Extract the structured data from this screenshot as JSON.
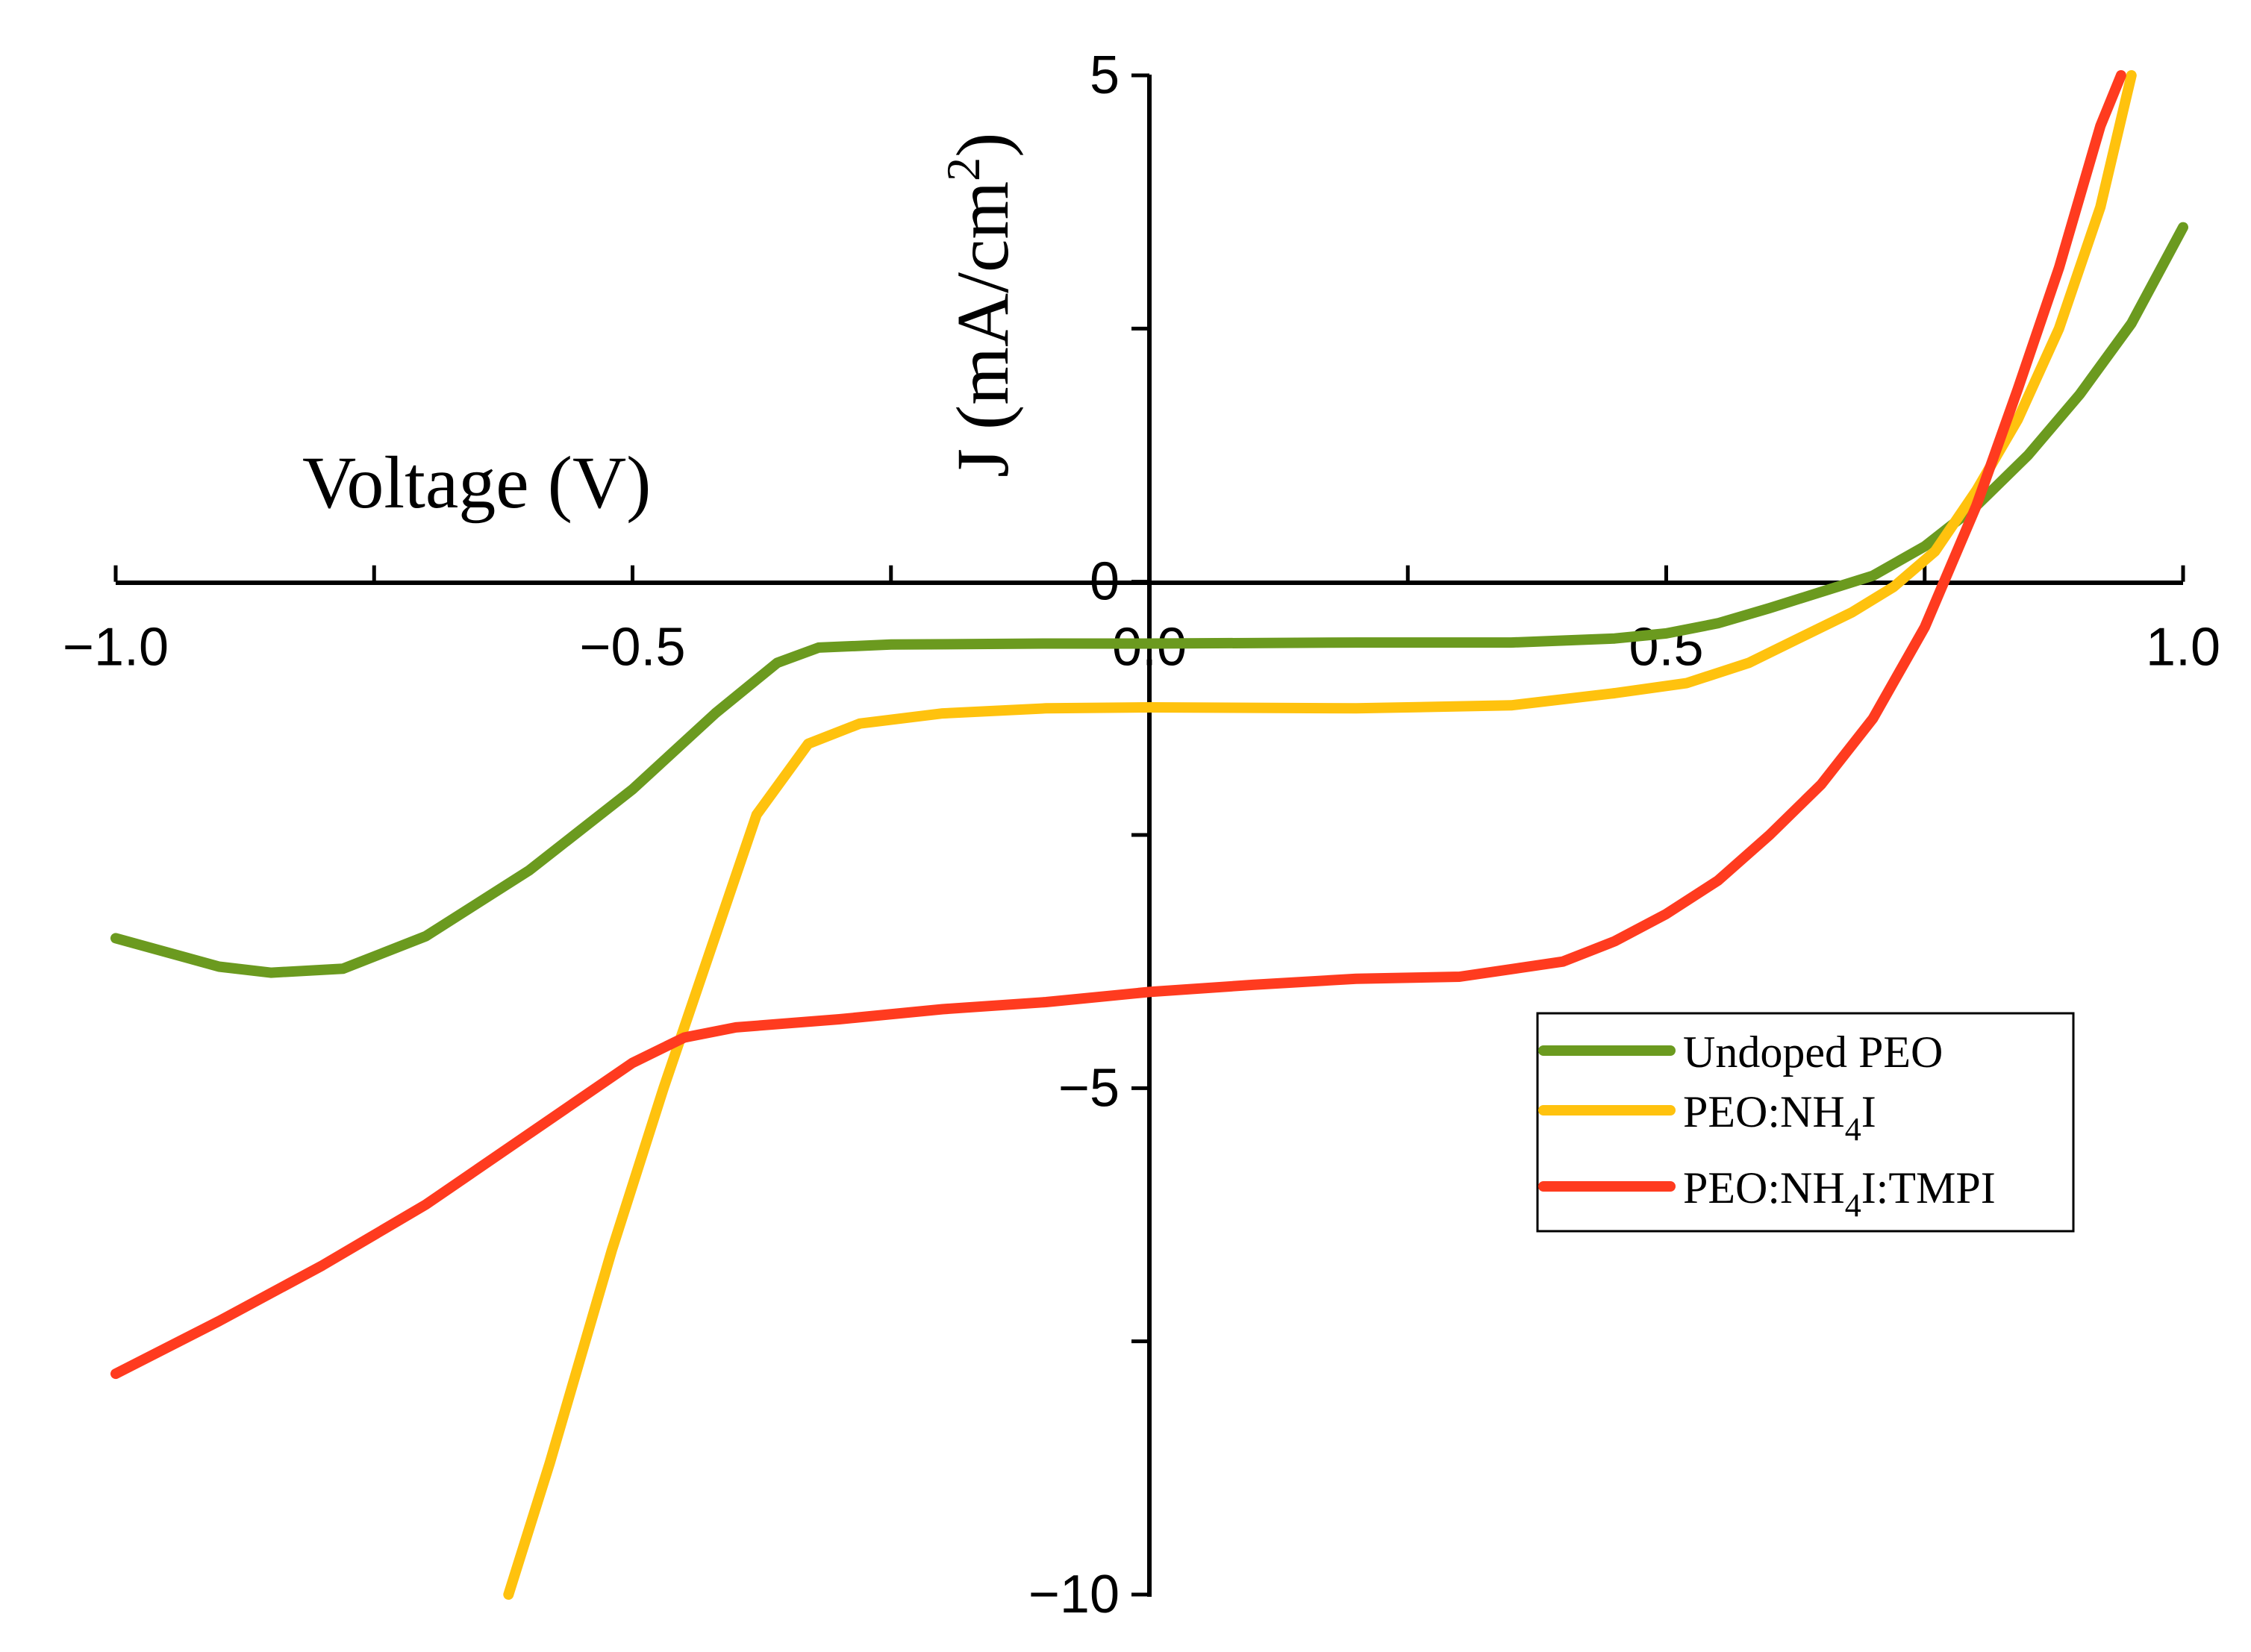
{
  "chart_data": {
    "type": "line",
    "xlabel": "Voltage (V)",
    "ylabel_main": "J (mA/cm",
    "ylabel_sup": "2",
    "ylabel_close": ")",
    "xlim": [
      -1.0,
      1.0
    ],
    "ylim": [
      -10,
      5
    ],
    "xticks": [
      -1.0,
      -0.75,
      -0.5,
      -0.25,
      0.0,
      0.25,
      0.5,
      0.75,
      1.0
    ],
    "xtick_labels": [
      {
        "value": -1.0,
        "label": "−1.0"
      },
      {
        "value": -0.5,
        "label": "−0.5"
      },
      {
        "value": 0.0,
        "label": "0.0"
      },
      {
        "value": 0.5,
        "label": "0.5"
      },
      {
        "value": 1.0,
        "label": "1.0"
      }
    ],
    "yticks": [
      -10,
      -7.5,
      -5,
      -2.5,
      0,
      2.5,
      5
    ],
    "ytick_labels": [
      {
        "value": 5,
        "label": "5"
      },
      {
        "value": 0,
        "label": "0"
      },
      {
        "value": -5,
        "label": "−5"
      },
      {
        "value": -10,
        "label": "−10"
      }
    ],
    "legend_position": "center-right",
    "series": [
      {
        "name": "Undoped PEO",
        "legend_main": "Undoped PEO",
        "legend_sub": "",
        "legend_rest": "",
        "color": "#6b9a1f",
        "points": [
          [
            -1.0,
            -3.52
          ],
          [
            -0.9,
            -3.8
          ],
          [
            -0.85,
            -3.86
          ],
          [
            -0.78,
            -3.82
          ],
          [
            -0.7,
            -3.5
          ],
          [
            -0.6,
            -2.85
          ],
          [
            -0.5,
            -2.05
          ],
          [
            -0.42,
            -1.3
          ],
          [
            -0.36,
            -0.8
          ],
          [
            -0.32,
            -0.65
          ],
          [
            -0.25,
            -0.62
          ],
          [
            -0.1,
            -0.61
          ],
          [
            0.0,
            -0.61
          ],
          [
            0.2,
            -0.6
          ],
          [
            0.35,
            -0.6
          ],
          [
            0.45,
            -0.56
          ],
          [
            0.5,
            -0.51
          ],
          [
            0.55,
            -0.41
          ],
          [
            0.6,
            -0.26
          ],
          [
            0.65,
            -0.1
          ],
          [
            0.7,
            0.06
          ],
          [
            0.75,
            0.35
          ],
          [
            0.8,
            0.75
          ],
          [
            0.85,
            1.25
          ],
          [
            0.9,
            1.85
          ],
          [
            0.95,
            2.55
          ],
          [
            1.0,
            3.5
          ]
        ]
      },
      {
        "name": "PEO:NH4I",
        "legend_main": "PEO:NH",
        "legend_sub": "4",
        "legend_rest": "I",
        "color": "#ffc20e",
        "points": [
          [
            -0.62,
            -10.0
          ],
          [
            -0.58,
            -8.7
          ],
          [
            -0.52,
            -6.6
          ],
          [
            -0.47,
            -5.0
          ],
          [
            -0.42,
            -3.5
          ],
          [
            -0.38,
            -2.3
          ],
          [
            -0.33,
            -1.6
          ],
          [
            -0.28,
            -1.4
          ],
          [
            -0.2,
            -1.3
          ],
          [
            -0.1,
            -1.25
          ],
          [
            0.0,
            -1.24
          ],
          [
            0.2,
            -1.25
          ],
          [
            0.35,
            -1.22
          ],
          [
            0.45,
            -1.1
          ],
          [
            0.52,
            -1.0
          ],
          [
            0.58,
            -0.8
          ],
          [
            0.63,
            -0.55
          ],
          [
            0.68,
            -0.3
          ],
          [
            0.72,
            -0.05
          ],
          [
            0.76,
            0.3
          ],
          [
            0.8,
            0.9
          ],
          [
            0.84,
            1.6
          ],
          [
            0.88,
            2.5
          ],
          [
            0.92,
            3.7
          ],
          [
            0.95,
            5.0
          ]
        ]
      },
      {
        "name": "PEO:NH4I:TMPI",
        "legend_main": "PEO:NH",
        "legend_sub": "4",
        "legend_rest": "I:TMPI",
        "color": "#ff3b1f",
        "points": [
          [
            -1.0,
            -7.82
          ],
          [
            -0.9,
            -7.3
          ],
          [
            -0.8,
            -6.75
          ],
          [
            -0.7,
            -6.15
          ],
          [
            -0.6,
            -5.45
          ],
          [
            -0.5,
            -4.75
          ],
          [
            -0.45,
            -4.5
          ],
          [
            -0.4,
            -4.4
          ],
          [
            -0.3,
            -4.32
          ],
          [
            -0.2,
            -4.22
          ],
          [
            -0.1,
            -4.15
          ],
          [
            0.0,
            -4.05
          ],
          [
            0.1,
            -3.98
          ],
          [
            0.2,
            -3.92
          ],
          [
            0.3,
            -3.9
          ],
          [
            0.4,
            -3.75
          ],
          [
            0.45,
            -3.55
          ],
          [
            0.5,
            -3.28
          ],
          [
            0.55,
            -2.95
          ],
          [
            0.6,
            -2.5
          ],
          [
            0.65,
            -2.0
          ],
          [
            0.7,
            -1.35
          ],
          [
            0.75,
            -0.45
          ],
          [
            0.8,
            0.75
          ],
          [
            0.84,
            1.9
          ],
          [
            0.88,
            3.1
          ],
          [
            0.92,
            4.5
          ],
          [
            0.94,
            5.0
          ]
        ]
      }
    ]
  }
}
